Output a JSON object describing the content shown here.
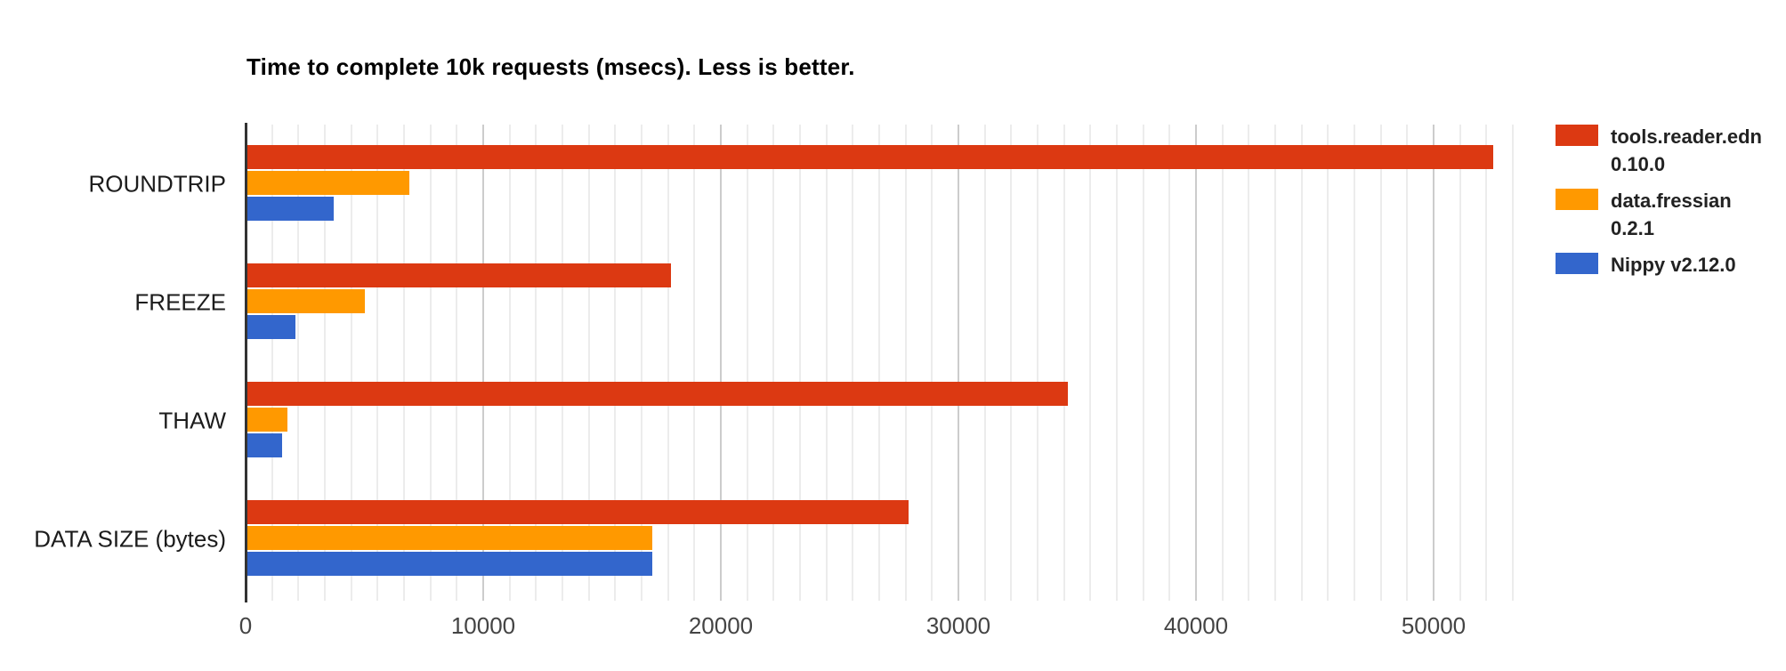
{
  "chart_data": {
    "type": "bar",
    "orientation": "horizontal",
    "title": "Time to complete 10k requests (msecs). Less is better.",
    "categories": [
      "ROUNDTRIP",
      "FREEZE",
      "THAW",
      "DATA SIZE (bytes)"
    ],
    "series": [
      {
        "name": "tools.reader.edn 0.10.0",
        "legend_lines": "tools.reader.edn\n0.10.0",
        "color": "#dc3912",
        "values": [
          52500,
          17900,
          34600,
          27900
        ]
      },
      {
        "name": "data.fressian 0.2.1",
        "legend_lines": "data.fressian\n0.2.1",
        "color": "#ff9900",
        "values": [
          6900,
          5000,
          1750,
          17100
        ]
      },
      {
        "name": "Nippy v2.12.0",
        "legend_lines": "Nippy v2.12.0",
        "color": "#3366cc",
        "values": [
          3700,
          2100,
          1520,
          17100
        ]
      }
    ],
    "x_axis": {
      "min": 0,
      "max": 54600,
      "ticks": [
        0,
        10000,
        20000,
        30000,
        40000,
        50000
      ],
      "tick_labels": [
        "0",
        "10000",
        "20000",
        "30000",
        "40000",
        "50000"
      ],
      "minor_divisions_per_major": 9
    },
    "ylabel": "",
    "xlabel": "",
    "grid": true,
    "legend_position": "right",
    "style_colors": {
      "background": "#ffffff",
      "axis_line": "#333333",
      "major_gridline": "#cccccc",
      "minor_gridline": "#ececec",
      "tick_label": "#444444",
      "category_label": "#1c1c1c",
      "title": "#000000"
    }
  }
}
